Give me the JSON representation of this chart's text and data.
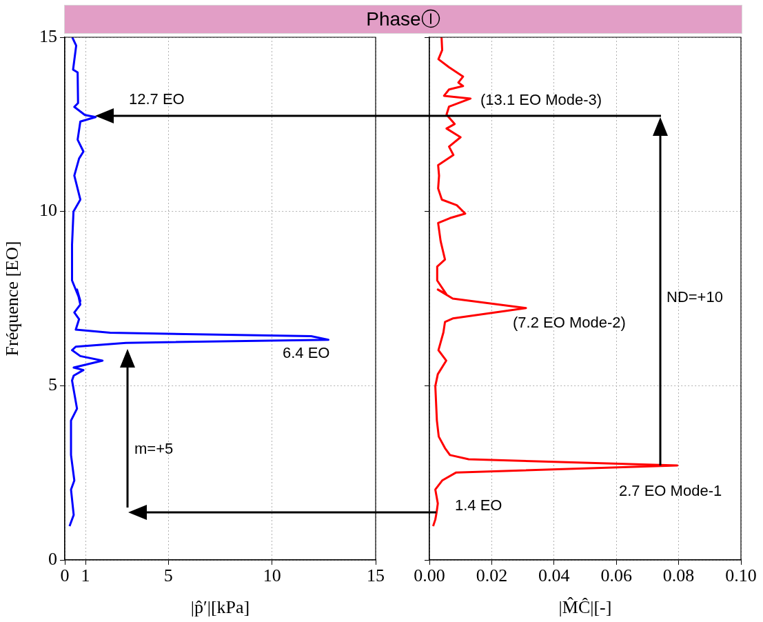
{
  "chart_data": [
    {
      "type": "line",
      "title": "PhaseⒾ",
      "xlabel": "|p̂′|[kPa]",
      "ylabel": "Fréquence [EO]",
      "series": [
        {
          "color": "#0000ff",
          "x": [
            0.36,
            0.55,
            0.4,
            0.62,
            0.64,
            0.46,
            0.97,
            1.49,
            0.75,
            0.62,
            0.9,
            0.69,
            0.46,
            0.75,
            0.42,
            0.35,
            0.35,
            0.75,
            0.59,
            0.75,
            0.46,
            0.69,
            0.53,
            2.19,
            11.89,
            12.72,
            2.95,
            0.53,
            0.35,
            0.75,
            1.82,
            0.43,
            0.9,
            0.43,
            0.35,
            0.59,
            0.3,
            0.3,
            0.46,
            0.3,
            0.43,
            0.23
          ],
          "values": [
            15.0,
            14.76,
            14.07,
            13.99,
            13.11,
            13.0,
            12.77,
            12.71,
            12.58,
            12.06,
            11.72,
            11.52,
            11.03,
            10.34,
            10.0,
            9.05,
            8.02,
            7.43,
            7.76,
            7.33,
            7.1,
            6.91,
            6.61,
            6.52,
            6.42,
            6.32,
            6.23,
            6.12,
            6.02,
            5.85,
            5.72,
            5.52,
            5.45,
            5.29,
            5.15,
            4.34,
            4.0,
            3.01,
            2.28,
            2.02,
            1.29,
            0.97
          ]
        }
      ],
      "xlim": [
        0,
        15
      ],
      "xticks": [
        0,
        1,
        5,
        10,
        15
      ],
      "ylim": [
        0,
        15
      ],
      "yticks": [
        0,
        5,
        10,
        15
      ],
      "grid": true,
      "annotations": [
        "12.7 EO",
        "6.4 EO",
        "m=+5"
      ]
    },
    {
      "type": "line",
      "xlabel": "|M̂Ĉ|[-]",
      "series": [
        {
          "color": "#ff0000",
          "x": [
            0.0039,
            0.0041,
            0.0029,
            0.0063,
            0.0108,
            0.0093,
            0.0108,
            0.0063,
            0.0047,
            0.0132,
            0.0063,
            0.0055,
            0.0081,
            0.0055,
            0.01,
            0.0063,
            0.0077,
            0.0028,
            0.0031,
            0.0028,
            0.004,
            0.0088,
            0.0115,
            0.0066,
            0.0028,
            0.0036,
            0.005,
            0.0025,
            0.0025,
            0.0054,
            0.0027,
            0.0075,
            0.031,
            0.0075,
            0.005,
            0.0045,
            0.0029,
            0.0054,
            0.0027,
            0.0019,
            0.0024,
            0.003,
            0.005,
            0.0066,
            0.0126,
            0.0796,
            0.0086,
            0.0041,
            0.0019,
            0.0027,
            0.0023,
            0.0019,
            0.0012
          ],
          "values": [
            15.0,
            14.63,
            14.37,
            14.14,
            13.87,
            13.7,
            13.6,
            13.5,
            13.32,
            13.24,
            13.01,
            12.78,
            12.51,
            12.38,
            12.13,
            11.86,
            11.62,
            11.33,
            11.03,
            10.66,
            10.34,
            10.18,
            9.94,
            9.81,
            9.67,
            9.15,
            8.62,
            8.42,
            8.02,
            7.63,
            7.76,
            7.5,
            7.23,
            6.93,
            6.83,
            6.53,
            6.02,
            5.72,
            5.33,
            4.99,
            4.0,
            3.54,
            3.21,
            3.01,
            2.89,
            2.71,
            2.51,
            2.28,
            2.02,
            1.62,
            1.36,
            1.16,
            0.97
          ]
        }
      ],
      "xlim": [
        0,
        0.1
      ],
      "xticks": [
        {
          "value": 0,
          "label": "0.00"
        },
        {
          "value": 0.02,
          "label": "0.02"
        },
        {
          "value": 0.04,
          "label": "0.04"
        },
        {
          "value": 0.06,
          "label": "0.06"
        },
        {
          "value": 0.08,
          "label": "0.08"
        },
        {
          "value": 0.1,
          "label": "0.10"
        }
      ],
      "ylim": [
        0,
        15
      ],
      "yticks": [
        0,
        5,
        10,
        15
      ],
      "tick_labels": "x",
      "grid": true,
      "annotations": [
        "(13.1 EO Mode-3)",
        "(7.2 EO Mode-2)",
        "ND=+10",
        "2.7 EO Mode-1",
        "1.4 EO"
      ]
    }
  ]
}
